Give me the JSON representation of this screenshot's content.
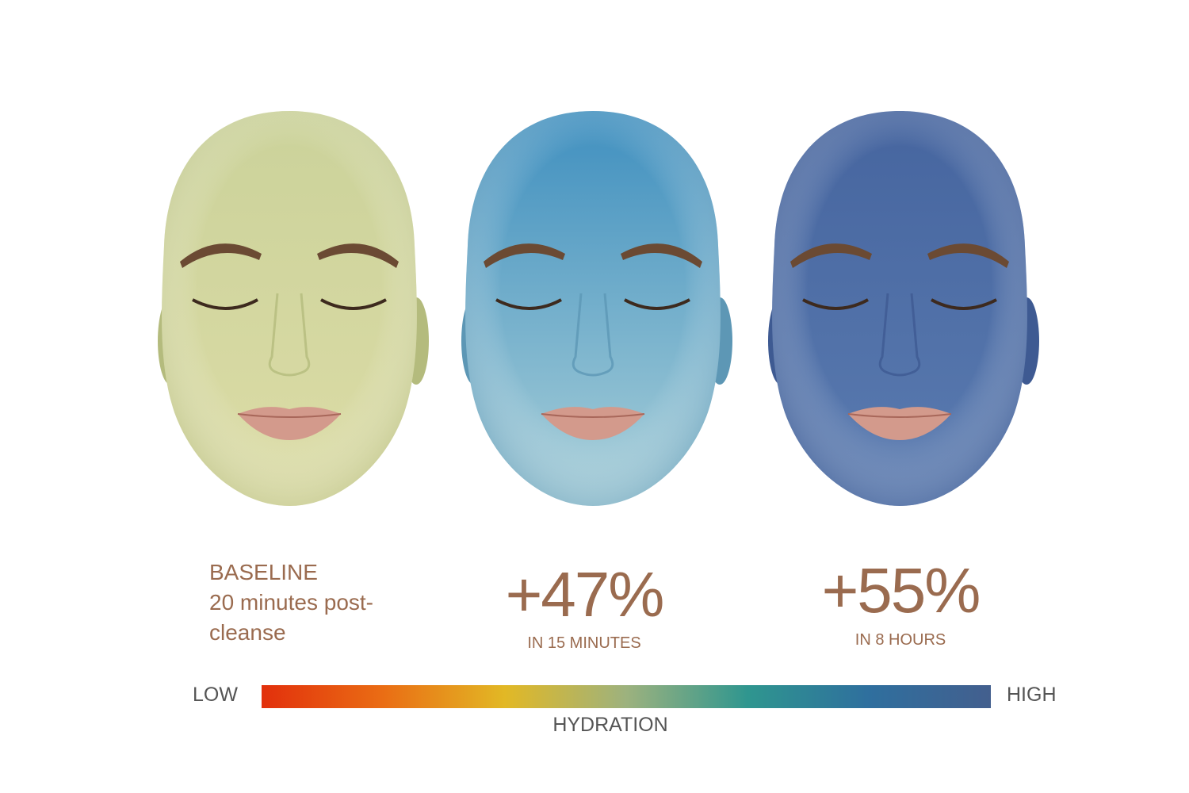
{
  "faces": [
    {
      "label": "baseline",
      "top_color": "#cbd29a",
      "bottom_color": "#dcdca6",
      "shade": "#b4bb7d"
    },
    {
      "label": "15-minutes",
      "top_color": "#3f8fbf",
      "bottom_color": "#a8cfd8",
      "shade": "#5d97b5"
    },
    {
      "label": "8-hours",
      "top_color": "#46659f",
      "bottom_color": "#5a7bb0",
      "shade": "#3e5a92"
    }
  ],
  "baseline": {
    "title": "BASELINE",
    "line1": "20 minutes post-",
    "line2": "cleanse"
  },
  "result_15min": {
    "value": "+47%",
    "caption": "IN 15 MINUTES"
  },
  "result_8h": {
    "value": "+55%",
    "caption": "IN 8 HOURS"
  },
  "scale": {
    "low_label": "LOW",
    "high_label": "HIGH",
    "title": "HYDRATION",
    "gradient": [
      "#e2300c",
      "#ea6d14",
      "#e2b825",
      "#9db27e",
      "#2f968f",
      "#2f6f9e",
      "#435f8e"
    ]
  },
  "colors": {
    "accent_text": "#9a6b4f",
    "scale_text": "#555555"
  }
}
